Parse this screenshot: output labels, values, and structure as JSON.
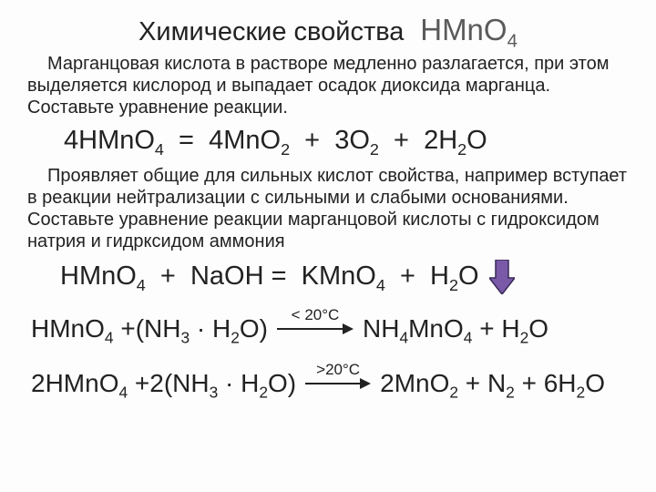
{
  "title": {
    "main": "Химические свойства",
    "formula_html": "HMnO<sub>4</sub>",
    "title_color": "#222",
    "formula_color": "#5a5a5a",
    "title_fontsize": 29,
    "formula_fontsize": 33
  },
  "para1": "Марганцовая кислота в растворе медленно разлагается, при этом выделяется кислород и выпадает осадок диоксида марганца. Составьте уравнение реакции.",
  "eq1_html": "4HMnO<sub>4</sub>&nbsp;&nbsp;=&nbsp;&nbsp;4MnO<sub>2</sub>&nbsp;&nbsp;+&nbsp;&nbsp;3O<sub>2</sub>&nbsp;&nbsp;+&nbsp;&nbsp;2H<sub>2</sub>O",
  "para2": "Проявляет общие для сильных кислот свойства, например вступает в реакции нейтрализации с сильными и слабыми основаниями. Составьте уравнение реакции марганцовой кислоты с гидроксидом натрия и гидрксидом аммония",
  "eq2_html": "HMnO<sub>4</sub>&nbsp;&nbsp;+&nbsp;&nbsp;NaOH =&nbsp;&nbsp;KMnO<sub>4</sub>&nbsp;&nbsp;+&nbsp;&nbsp;H<sub>2</sub>O",
  "eq3": {
    "left_html": "HMnO<sub>4</sub> +(NH<sub>3</sub> · H<sub>2</sub>O)",
    "arrow_cond": "< 20°C",
    "right_html": "NH<sub>4</sub>MnO<sub>4</sub> + H<sub>2</sub>O"
  },
  "eq4": {
    "left_html": "2HMnO<sub>4</sub> +2(NH<sub>3</sub> · H<sub>2</sub>O)",
    "arrow_cond": ">20°C",
    "right_html": "2MnO<sub>2</sub> + N<sub>2</sub> + 6H<sub>2</sub>O"
  },
  "style": {
    "bg": "#fdfdfd",
    "text_color": "#222",
    "para_fontsize": 20,
    "eq_fontsize": 29,
    "down_arrow_fill": "#7a5aa8",
    "down_arrow_stroke": "#3a2a58"
  }
}
